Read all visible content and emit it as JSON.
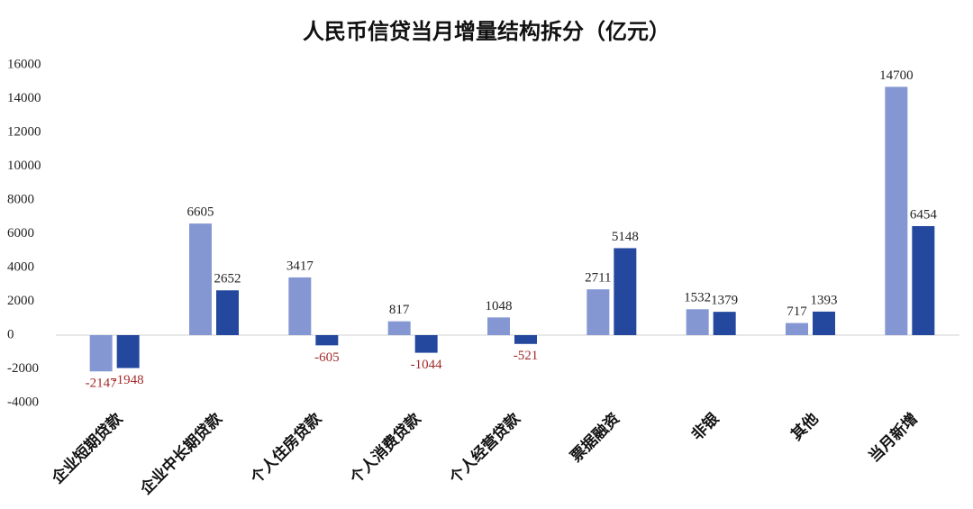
{
  "chart_data": {
    "type": "bar",
    "title": "人民币信贷当月增量结构拆分（亿元）",
    "categories": [
      "企业短期贷款",
      "企业中长期贷款",
      "个人住房贷款",
      "个人消费贷款",
      "个人经营贷款",
      "票据融资",
      "非银",
      "其他",
      "当月新增"
    ],
    "series": [
      {
        "color": "#8497d2",
        "values": [
          -2147,
          6605,
          3417,
          817,
          1048,
          2711,
          1532,
          717,
          14700
        ]
      },
      {
        "color": "#24489e",
        "values": [
          -1948,
          2652,
          -605,
          -1044,
          -521,
          5148,
          1379,
          1393,
          6454
        ]
      }
    ],
    "ylim": [
      -4000,
      16000
    ],
    "yticks": [
      -4000,
      -2000,
      0,
      2000,
      4000,
      6000,
      8000,
      10000,
      12000,
      14000,
      16000
    ],
    "grid": false
  }
}
